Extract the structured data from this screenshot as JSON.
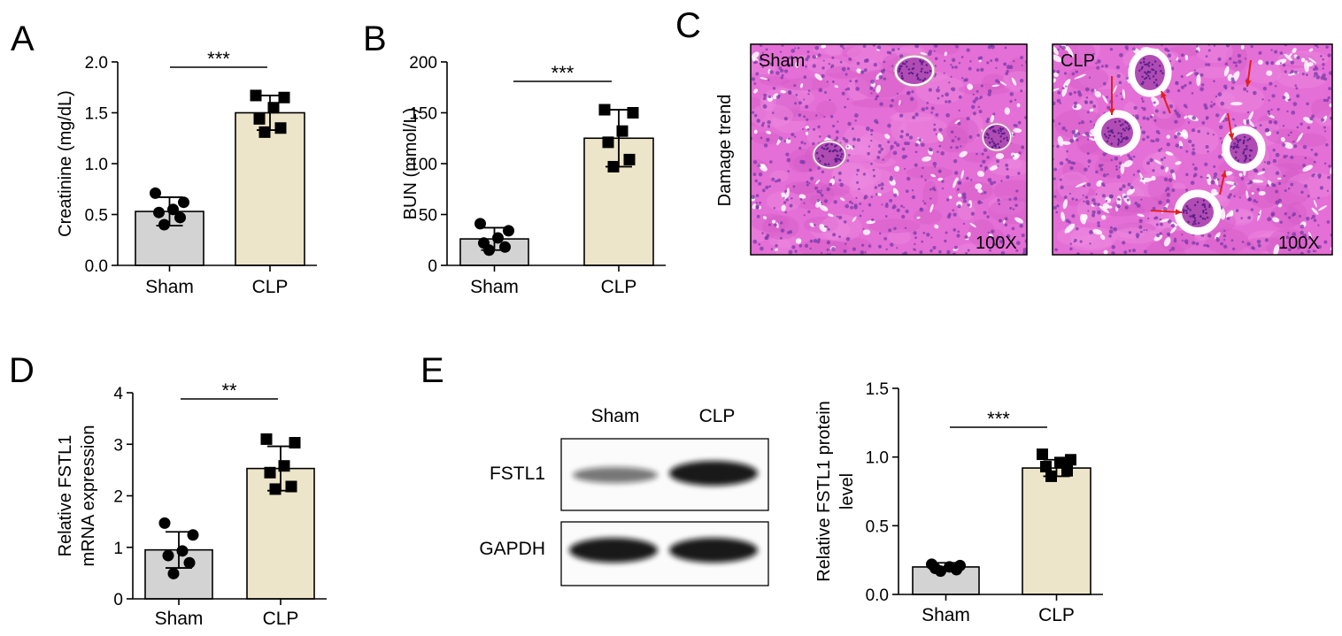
{
  "panel_letters": {
    "A": "A",
    "B": "B",
    "C": "C",
    "D": "D",
    "E": "E"
  },
  "histology": {
    "row_label": "Damage trend",
    "images": [
      {
        "label": "Sham",
        "magnification": "100X"
      },
      {
        "label": "CLP",
        "magnification": "100X"
      }
    ],
    "tissue_colors": {
      "background": "#e46fd6",
      "nuclei": "#7a3aa8",
      "space": "#ffffff",
      "arrow": "#e0201c"
    }
  },
  "western_blot": {
    "lane_labels": [
      "Sham",
      "CLP"
    ],
    "bands": [
      {
        "label": "FSTL1",
        "intensity": [
          0.55,
          0.95
        ]
      },
      {
        "label": "GAPDH",
        "intensity": [
          0.95,
          0.95
        ]
      }
    ]
  },
  "colors": {
    "sham_bar": "#d3d3d3",
    "clp_bar": "#ede5c9",
    "stroke": "#000000"
  },
  "chart_data": [
    {
      "id": "A",
      "type": "bar",
      "categories": [
        "Sham",
        "CLP"
      ],
      "values": [
        0.53,
        1.5
      ],
      "errors": [
        0.14,
        0.17
      ],
      "points": [
        [
          0.71,
          0.62,
          0.55,
          0.52,
          0.47,
          0.4
        ],
        [
          1.67,
          1.65,
          1.55,
          1.44,
          1.35,
          1.31
        ]
      ],
      "markers": [
        "circle",
        "square"
      ],
      "ylabel": "Creatinine (mg/dL)",
      "ylim": [
        0,
        2.0
      ],
      "yticks": [
        "0.0",
        "0.5",
        "1.0",
        "1.5",
        "2.0"
      ],
      "significance": "***"
    },
    {
      "id": "B",
      "type": "bar",
      "categories": [
        "Sham",
        "CLP"
      ],
      "values": [
        26,
        125
      ],
      "errors": [
        11,
        28
      ],
      "points": [
        [
          41,
          34,
          27,
          22,
          18,
          15
        ],
        [
          153,
          150,
          132,
          121,
          104,
          97
        ]
      ],
      "markers": [
        "circle",
        "square"
      ],
      "ylabel": "BUN (mmol/L)",
      "ylim": [
        0,
        200
      ],
      "yticks": [
        "0",
        "50",
        "100",
        "150",
        "200"
      ],
      "significance": "***"
    },
    {
      "id": "D",
      "type": "bar",
      "categories": [
        "Sham",
        "CLP"
      ],
      "values": [
        0.95,
        2.53
      ],
      "errors": [
        0.35,
        0.43
      ],
      "points": [
        [
          1.47,
          1.24,
          0.93,
          0.84,
          0.7,
          0.49
        ],
        [
          3.1,
          3.03,
          2.58,
          2.45,
          2.18,
          2.13
        ]
      ],
      "markers": [
        "circle",
        "square"
      ],
      "ylabel": [
        "Relative FSTL1",
        "mRNA expression"
      ],
      "ylim": [
        0,
        4
      ],
      "yticks": [
        "0",
        "1",
        "2",
        "3",
        "4"
      ],
      "significance": "**"
    },
    {
      "id": "E",
      "type": "bar",
      "categories": [
        "Sham",
        "CLP"
      ],
      "values": [
        0.2,
        0.92
      ],
      "errors": [
        0.03,
        0.06
      ],
      "points": [
        [
          0.22,
          0.21,
          0.2,
          0.19,
          0.18,
          0.17
        ],
        [
          1.02,
          0.98,
          0.96,
          0.93,
          0.9,
          0.86
        ]
      ],
      "markers": [
        "circle",
        "square"
      ],
      "ylabel": [
        "Relative FSTL1 protein",
        "level"
      ],
      "ylim": [
        0,
        1.5
      ],
      "yticks": [
        "0.0",
        "0.5",
        "1.0",
        "1.5"
      ],
      "significance": "***"
    }
  ]
}
